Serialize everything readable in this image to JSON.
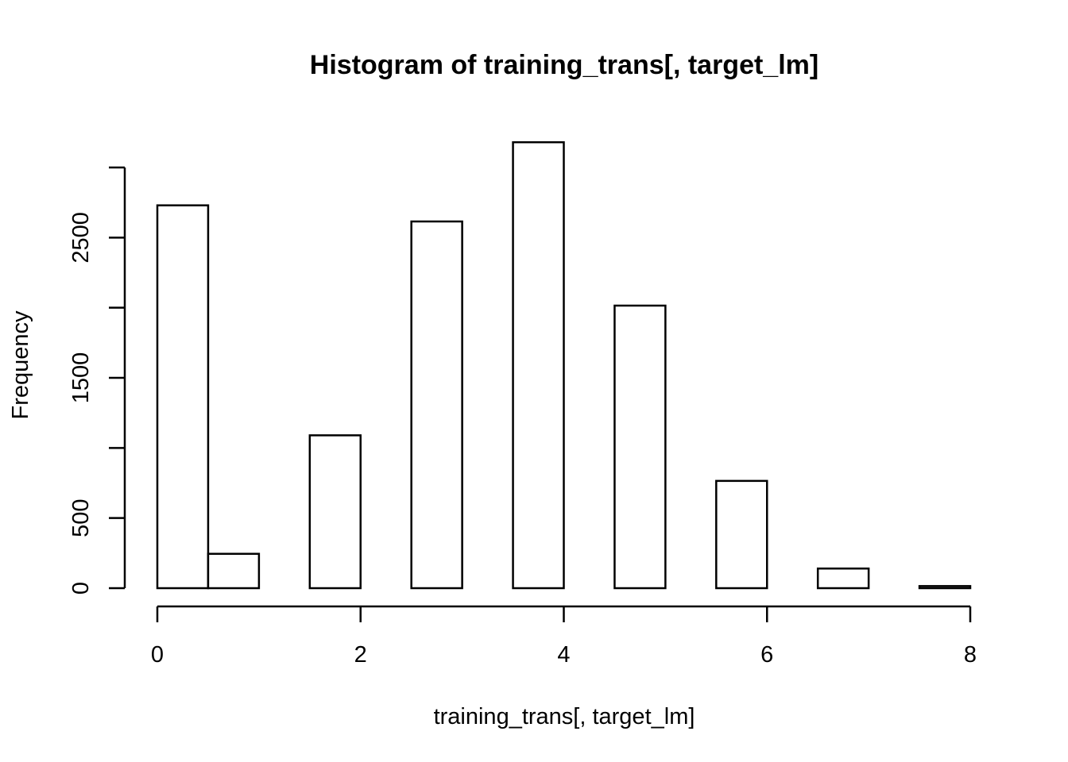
{
  "chart_data": {
    "type": "bar",
    "title": "Histogram of training_trans[, target_lm]",
    "xlabel": "training_trans[, target_lm]",
    "ylabel": "Frequency",
    "bins": [
      {
        "start": 0.0,
        "end": 0.5,
        "count": 2730
      },
      {
        "start": 0.5,
        "end": 1.0,
        "count": 245
      },
      {
        "start": 1.0,
        "end": 1.5,
        "count": 0
      },
      {
        "start": 1.5,
        "end": 2.0,
        "count": 1090
      },
      {
        "start": 2.0,
        "end": 2.5,
        "count": 0
      },
      {
        "start": 2.5,
        "end": 3.0,
        "count": 2615
      },
      {
        "start": 3.0,
        "end": 3.5,
        "count": 0
      },
      {
        "start": 3.5,
        "end": 4.0,
        "count": 3180
      },
      {
        "start": 4.0,
        "end": 4.5,
        "count": 0
      },
      {
        "start": 4.5,
        "end": 5.0,
        "count": 2015
      },
      {
        "start": 5.0,
        "end": 5.5,
        "count": 0
      },
      {
        "start": 5.5,
        "end": 6.0,
        "count": 765
      },
      {
        "start": 6.0,
        "end": 6.5,
        "count": 0
      },
      {
        "start": 6.5,
        "end": 7.0,
        "count": 140
      },
      {
        "start": 7.0,
        "end": 7.5,
        "count": 0
      },
      {
        "start": 7.5,
        "end": 8.0,
        "count": 15
      }
    ],
    "xlim": [
      0,
      8
    ],
    "ylim": [
      0,
      3000
    ],
    "x_ticks": [
      0,
      2,
      4,
      6,
      8
    ],
    "x_tick_labels": [
      "0",
      "2",
      "4",
      "6",
      "8"
    ],
    "y_ticks": [
      0,
      500,
      1000,
      1500,
      2000,
      2500,
      3000
    ],
    "y_tick_labels": [
      "0",
      "500",
      "",
      "1500",
      "",
      "2500",
      ""
    ],
    "grid": false,
    "legend": "none"
  }
}
